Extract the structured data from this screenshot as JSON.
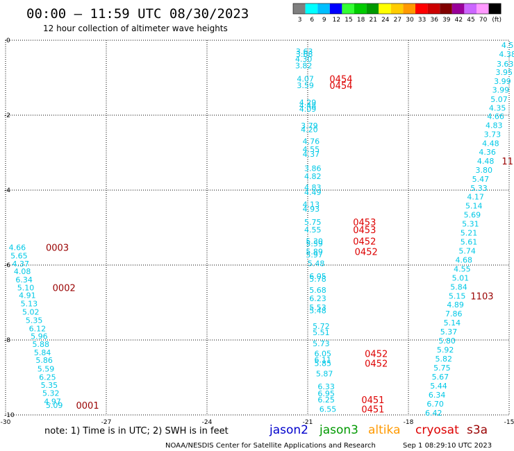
{
  "header": {
    "title": "00:00 – 11:59 UTC 08/30/2023",
    "subtitle": "12 hour collection of altimeter wave heights"
  },
  "legend": {
    "labels": [
      "3",
      "6",
      "9",
      "12",
      "15",
      "18",
      "21",
      "24",
      "27",
      "30",
      "33",
      "36",
      "39",
      "42",
      "45",
      "70",
      "(ft)"
    ],
    "colors": [
      "#7f7f7f",
      "#00ffff",
      "#00bfff",
      "#0000ff",
      "#33ff33",
      "#00cc00",
      "#009900",
      "#ffff00",
      "#ffcc00",
      "#ff9900",
      "#ff0000",
      "#cc0000",
      "#800000",
      "#990099",
      "#cc66ff",
      "#ff99ff",
      "#000000"
    ]
  },
  "footer": {
    "note": "note: 1) Time is in UTC; 2) SWH is in feet",
    "missions": [
      {
        "name": "jason2",
        "color": "#0000cc"
      },
      {
        "name": "jason3",
        "color": "#009900"
      },
      {
        "name": "altika",
        "color": "#ff9900"
      },
      {
        "name": "cryosat",
        "color": "#dd0000"
      },
      {
        "name": "s3a",
        "color": "#990000"
      }
    ],
    "credit": "NOAA/NESDIS Center for Satellite Applications and Research",
    "timestamp": "Sep  1 08:29:10 UTC 2023"
  },
  "colors": {
    "swh": "#00c8e6",
    "time_red": "#dd0000",
    "time_dark": "#990000",
    "grid": "#000000"
  },
  "chart_data": {
    "type": "scatter",
    "xlim": [
      -30,
      -15
    ],
    "ylim": [
      -10,
      0
    ],
    "x_ticks": [
      -30,
      -27,
      -24,
      -21,
      -18,
      -15
    ],
    "y_ticks": [
      0,
      -2,
      -4,
      -6,
      -8,
      -10
    ],
    "x_tick_labels": [
      "-30",
      "-27",
      "-24",
      "-21",
      "-18",
      "-15"
    ],
    "y_tick_labels": [
      "0",
      "-2",
      "-4",
      "-6",
      "-8",
      "-10"
    ],
    "grid": true,
    "swh_points": [
      {
        "x": -29.65,
        "y": -5.53,
        "v": "4.66"
      },
      {
        "x": -29.6,
        "y": -5.75,
        "v": "5.65"
      },
      {
        "x": -29.55,
        "y": -5.96,
        "v": "4.37"
      },
      {
        "x": -29.5,
        "y": -6.17,
        "v": "4.08"
      },
      {
        "x": -29.45,
        "y": -6.39,
        "v": "6.34"
      },
      {
        "x": -29.4,
        "y": -6.6,
        "v": "5.10"
      },
      {
        "x": -29.35,
        "y": -6.81,
        "v": "4.91"
      },
      {
        "x": -29.3,
        "y": -7.03,
        "v": "5.13"
      },
      {
        "x": -29.25,
        "y": -7.25,
        "v": "5.02"
      },
      {
        "x": -29.15,
        "y": -7.47,
        "v": "5.35"
      },
      {
        "x": -29.05,
        "y": -7.69,
        "v": "6.12"
      },
      {
        "x": -29.0,
        "y": -7.9,
        "v": "5.96"
      },
      {
        "x": -28.95,
        "y": -8.11,
        "v": "5.88"
      },
      {
        "x": -28.9,
        "y": -8.33,
        "v": "5.84"
      },
      {
        "x": -28.85,
        "y": -8.54,
        "v": "5.86"
      },
      {
        "x": -28.8,
        "y": -8.77,
        "v": "5.59"
      },
      {
        "x": -28.75,
        "y": -8.99,
        "v": "6.25"
      },
      {
        "x": -28.7,
        "y": -9.2,
        "v": "5.35"
      },
      {
        "x": -28.65,
        "y": -9.42,
        "v": "5.32"
      },
      {
        "x": -28.6,
        "y": -9.64,
        "v": "4.97"
      },
      {
        "x": -28.55,
        "y": -9.74,
        "v": "5.09"
      },
      {
        "x": -21.1,
        "y": -0.3,
        "v": "3.63"
      },
      {
        "x": -21.1,
        "y": -0.37,
        "v": "3.68"
      },
      {
        "x": -21.12,
        "y": -0.5,
        "v": "4.30"
      },
      {
        "x": -21.12,
        "y": -0.68,
        "v": "3.82"
      },
      {
        "x": -21.07,
        "y": -1.03,
        "v": "4.07"
      },
      {
        "x": -21.07,
        "y": -1.2,
        "v": "3.59"
      },
      {
        "x": -21.0,
        "y": -1.66,
        "v": "4.29"
      },
      {
        "x": -21.0,
        "y": -1.74,
        "v": "4.48"
      },
      {
        "x": -21.0,
        "y": -1.83,
        "v": "4.09"
      },
      {
        "x": -20.95,
        "y": -2.28,
        "v": "3.79"
      },
      {
        "x": -20.95,
        "y": -2.38,
        "v": "4.20"
      },
      {
        "x": -20.9,
        "y": -2.69,
        "v": "4.76"
      },
      {
        "x": -20.9,
        "y": -2.91,
        "v": "4.55"
      },
      {
        "x": -20.9,
        "y": -3.04,
        "v": "4.37"
      },
      {
        "x": -20.85,
        "y": -3.42,
        "v": "3.86"
      },
      {
        "x": -20.85,
        "y": -3.63,
        "v": "4.82"
      },
      {
        "x": -20.85,
        "y": -3.93,
        "v": "4.83"
      },
      {
        "x": -20.85,
        "y": -4.06,
        "v": "4.49"
      },
      {
        "x": -20.9,
        "y": -4.38,
        "v": "4.13"
      },
      {
        "x": -20.9,
        "y": -4.5,
        "v": "4.93"
      },
      {
        "x": -20.85,
        "y": -4.85,
        "v": "5.75"
      },
      {
        "x": -20.85,
        "y": -5.06,
        "v": "4.55"
      },
      {
        "x": -20.8,
        "y": -5.36,
        "v": "5.30"
      },
      {
        "x": -20.8,
        "y": -5.43,
        "v": "5.59"
      },
      {
        "x": -20.8,
        "y": -5.64,
        "v": "5.89"
      },
      {
        "x": -20.8,
        "y": -5.72,
        "v": "5.97"
      },
      {
        "x": -20.75,
        "y": -5.95,
        "v": "5.48"
      },
      {
        "x": -20.7,
        "y": -6.3,
        "v": "6.05"
      },
      {
        "x": -20.7,
        "y": -6.37,
        "v": "5.78"
      },
      {
        "x": -20.7,
        "y": -6.67,
        "v": "5.68"
      },
      {
        "x": -20.7,
        "y": -6.89,
        "v": "6.23"
      },
      {
        "x": -20.7,
        "y": -7.13,
        "v": "5.53"
      },
      {
        "x": -20.7,
        "y": -7.21,
        "v": "5.48"
      },
      {
        "x": -20.6,
        "y": -7.63,
        "v": "5.72"
      },
      {
        "x": -20.6,
        "y": -7.8,
        "v": "5.51"
      },
      {
        "x": -20.6,
        "y": -8.09,
        "v": "5.73"
      },
      {
        "x": -20.55,
        "y": -8.36,
        "v": "6.05"
      },
      {
        "x": -20.55,
        "y": -8.53,
        "v": "6.11"
      },
      {
        "x": -20.55,
        "y": -8.62,
        "v": "5.85"
      },
      {
        "x": -20.5,
        "y": -8.9,
        "v": "5.87"
      },
      {
        "x": -20.45,
        "y": -9.24,
        "v": "6.33"
      },
      {
        "x": -20.45,
        "y": -9.43,
        "v": "6.95"
      },
      {
        "x": -20.45,
        "y": -9.59,
        "v": "6.25"
      },
      {
        "x": -20.4,
        "y": -9.84,
        "v": "6.55"
      },
      {
        "x": -15.05,
        "y": -0.13,
        "v": "4.5"
      },
      {
        "x": -15.05,
        "y": -0.37,
        "v": "4.38"
      },
      {
        "x": -15.12,
        "y": -0.63,
        "v": "3.63"
      },
      {
        "x": -15.15,
        "y": -0.85,
        "v": "3.95"
      },
      {
        "x": -15.2,
        "y": -1.09,
        "v": "3.99"
      },
      {
        "x": -15.25,
        "y": -1.32,
        "v": "3.99"
      },
      {
        "x": -15.3,
        "y": -1.57,
        "v": "5.07"
      },
      {
        "x": -15.35,
        "y": -1.81,
        "v": "4.35"
      },
      {
        "x": -15.4,
        "y": -2.03,
        "v": "4.66"
      },
      {
        "x": -15.45,
        "y": -2.27,
        "v": "4.83"
      },
      {
        "x": -15.5,
        "y": -2.51,
        "v": "3.73"
      },
      {
        "x": -15.55,
        "y": -2.75,
        "v": "4.48"
      },
      {
        "x": -15.65,
        "y": -2.98,
        "v": "4.36"
      },
      {
        "x": -15.7,
        "y": -3.22,
        "v": "4.48"
      },
      {
        "x": -15.75,
        "y": -3.46,
        "v": "3.80"
      },
      {
        "x": -15.85,
        "y": -3.7,
        "v": "5.47"
      },
      {
        "x": -15.9,
        "y": -3.94,
        "v": "5.33"
      },
      {
        "x": -16.0,
        "y": -4.18,
        "v": "4.17"
      },
      {
        "x": -16.05,
        "y": -4.42,
        "v": "5.14"
      },
      {
        "x": -16.1,
        "y": -4.66,
        "v": "5.69"
      },
      {
        "x": -16.15,
        "y": -4.9,
        "v": "5.31"
      },
      {
        "x": -16.2,
        "y": -5.14,
        "v": "5.21"
      },
      {
        "x": -16.2,
        "y": -5.38,
        "v": "5.61"
      },
      {
        "x": -16.25,
        "y": -5.62,
        "v": "5.74"
      },
      {
        "x": -16.35,
        "y": -5.86,
        "v": "4.68"
      },
      {
        "x": -16.4,
        "y": -6.1,
        "v": "4.55"
      },
      {
        "x": -16.45,
        "y": -6.34,
        "v": "5.01"
      },
      {
        "x": -16.5,
        "y": -6.58,
        "v": "5.84"
      },
      {
        "x": -16.55,
        "y": -6.82,
        "v": "5.15"
      },
      {
        "x": -16.6,
        "y": -7.06,
        "v": "4.89"
      },
      {
        "x": -16.65,
        "y": -7.3,
        "v": "7.86"
      },
      {
        "x": -16.7,
        "y": -7.54,
        "v": "5.14"
      },
      {
        "x": -16.8,
        "y": -7.78,
        "v": "5.37"
      },
      {
        "x": -16.85,
        "y": -8.02,
        "v": "5.80"
      },
      {
        "x": -16.9,
        "y": -8.26,
        "v": "5.92"
      },
      {
        "x": -16.95,
        "y": -8.5,
        "v": "5.82"
      },
      {
        "x": -17.0,
        "y": -8.74,
        "v": "5.75"
      },
      {
        "x": -17.05,
        "y": -8.98,
        "v": "5.67"
      },
      {
        "x": -17.1,
        "y": -9.22,
        "v": "5.44"
      },
      {
        "x": -17.15,
        "y": -9.46,
        "v": "6.34"
      },
      {
        "x": -17.2,
        "y": -9.7,
        "v": "6.70"
      },
      {
        "x": -17.25,
        "y": -9.94,
        "v": "6.42"
      }
    ],
    "time_labels": [
      {
        "x": -28.8,
        "y": -5.53,
        "v": "0003",
        "c": "dark"
      },
      {
        "x": -28.6,
        "y": -6.6,
        "v": "0002",
        "c": "dark"
      },
      {
        "x": -27.9,
        "y": -9.74,
        "v": "0001",
        "c": "dark"
      },
      {
        "x": -20.35,
        "y": -1.03,
        "v": "0454",
        "c": "red"
      },
      {
        "x": -20.35,
        "y": -1.2,
        "v": "0454",
        "c": "red"
      },
      {
        "x": -19.65,
        "y": -4.85,
        "v": "0453",
        "c": "red"
      },
      {
        "x": -19.65,
        "y": -5.06,
        "v": "0453",
        "c": "red"
      },
      {
        "x": -19.65,
        "y": -5.36,
        "v": "0452",
        "c": "red"
      },
      {
        "x": -19.6,
        "y": -5.64,
        "v": "0452",
        "c": "red"
      },
      {
        "x": -19.3,
        "y": -8.36,
        "v": "0452",
        "c": "red"
      },
      {
        "x": -19.3,
        "y": -8.62,
        "v": "0452",
        "c": "red"
      },
      {
        "x": -19.4,
        "y": -9.59,
        "v": "0451",
        "c": "red"
      },
      {
        "x": -19.4,
        "y": -9.84,
        "v": "0451",
        "c": "red"
      },
      {
        "x": -15.22,
        "y": -3.22,
        "v": "11",
        "c": "dark"
      },
      {
        "x": -16.15,
        "y": -6.82,
        "v": "1103",
        "c": "dark"
      }
    ]
  }
}
